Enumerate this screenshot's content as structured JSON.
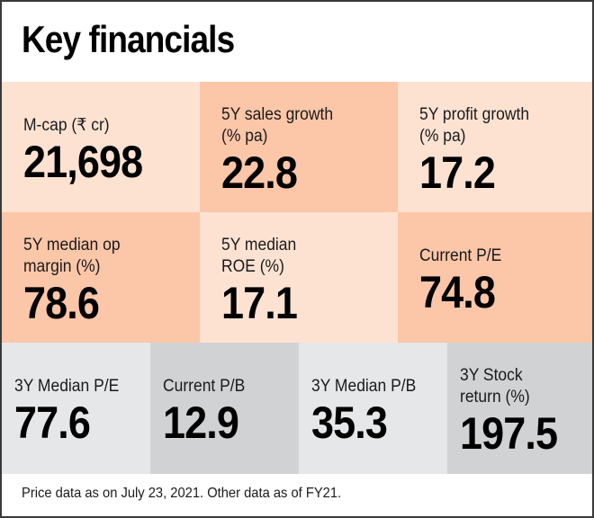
{
  "title": "Key financials",
  "colors": {
    "light_peach": "#fde2d2",
    "dark_peach": "#fcc6a8",
    "light_gray": "#e6e7e9",
    "dark_gray": "#d1d2d4",
    "border": "#3a3a3a"
  },
  "metrics": [
    {
      "label_lines": [
        "M-cap (₹ cr)"
      ],
      "value": "21,698"
    },
    {
      "label_lines": [
        "5Y sales growth",
        "(% pa)"
      ],
      "value": "22.8"
    },
    {
      "label_lines": [
        "5Y profit growth",
        "(% pa)"
      ],
      "value": "17.2"
    },
    {
      "label_lines": [
        "5Y median op",
        "margin (%)"
      ],
      "value": "78.6"
    },
    {
      "label_lines": [
        "5Y median",
        "ROE (%)"
      ],
      "value": "17.1"
    },
    {
      "label_lines": [
        "Current P/E"
      ],
      "value": "74.8"
    },
    {
      "label_lines": [
        "3Y Median P/E"
      ],
      "value": "77.6"
    },
    {
      "label_lines": [
        "Current P/B"
      ],
      "value": "12.9"
    },
    {
      "label_lines": [
        "3Y Median P/B"
      ],
      "value": "35.3"
    },
    {
      "label_lines": [
        "3Y Stock",
        "return (%)"
      ],
      "value": "197.5"
    }
  ],
  "footnote": "Price data as on July 23, 2021. Other data as of FY21."
}
